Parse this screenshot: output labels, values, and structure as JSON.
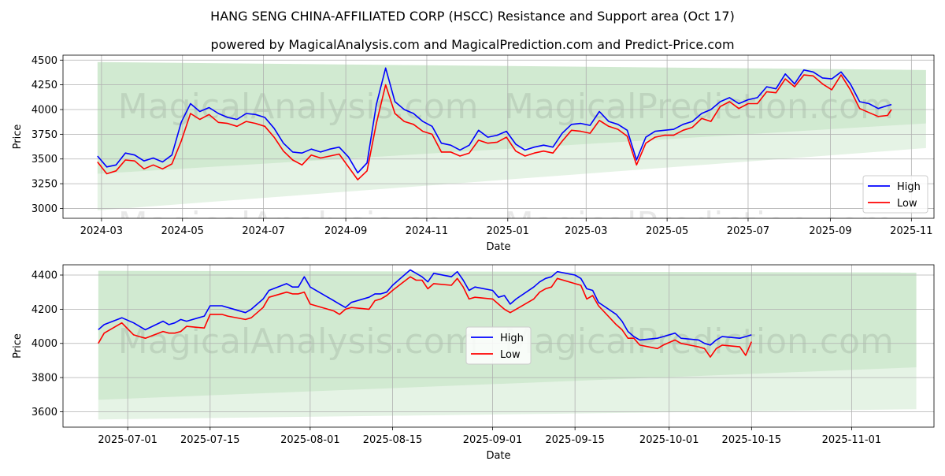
{
  "header": {
    "title": "HANG SENG CHINA-AFFILIATED CORP (HSCC) Resistance and Support area (Oct 17)",
    "subtitle": "powered by MagicalAnalysis.com and MagicalPrediction.com and Predict-Price.com"
  },
  "watermark": [
    "MagicalAnalysis.com",
    "MagicalPrediction.com"
  ],
  "colors": {
    "high": "#0000ff",
    "low": "#ff0000",
    "band": "#2ca02c"
  },
  "chart_data": [
    {
      "type": "line",
      "xlabel": "Date",
      "ylabel": "Price",
      "xlim": [
        "2024-02-01",
        "2025-11-18"
      ],
      "ylim": [
        2900,
        4550
      ],
      "yticks": [
        3000,
        3250,
        3500,
        3750,
        4000,
        4250,
        4500
      ],
      "xticks": [
        "2024-03",
        "2024-05",
        "2024-07",
        "2024-09",
        "2024-11",
        "2025-01",
        "2025-03",
        "2025-05",
        "2025-07",
        "2025-09",
        "2025-11"
      ],
      "grid": true,
      "legend": "lower right",
      "bands": [
        {
          "x": [
            "2024-02-27",
            "2025-11-12"
          ],
          "upper": [
            4480,
            4400
          ],
          "lower": [
            3350,
            3860
          ]
        },
        {
          "x": [
            "2024-02-27",
            "2025-11-12"
          ],
          "upper": [
            3350,
            3860
          ],
          "lower": [
            2980,
            3610
          ]
        }
      ],
      "series": [
        {
          "name": "High",
          "x": [
            "2024-02-27",
            "2024-03-05",
            "2024-03-12",
            "2024-03-19",
            "2024-03-26",
            "2024-04-02",
            "2024-04-09",
            "2024-04-16",
            "2024-04-23",
            "2024-04-30",
            "2024-05-07",
            "2024-05-14",
            "2024-05-21",
            "2024-05-28",
            "2024-06-04",
            "2024-06-11",
            "2024-06-18",
            "2024-06-25",
            "2024-07-02",
            "2024-07-09",
            "2024-07-16",
            "2024-07-23",
            "2024-07-30",
            "2024-08-06",
            "2024-08-13",
            "2024-08-20",
            "2024-08-27",
            "2024-09-03",
            "2024-09-10",
            "2024-09-17",
            "2024-09-24",
            "2024-10-01",
            "2024-10-08",
            "2024-10-15",
            "2024-10-22",
            "2024-10-29",
            "2024-11-05",
            "2024-11-12",
            "2024-11-19",
            "2024-11-26",
            "2024-12-03",
            "2024-12-10",
            "2024-12-17",
            "2024-12-24",
            "2024-12-31",
            "2025-01-07",
            "2025-01-14",
            "2025-01-21",
            "2025-01-28",
            "2025-02-04",
            "2025-02-11",
            "2025-02-18",
            "2025-02-25",
            "2025-03-04",
            "2025-03-11",
            "2025-03-18",
            "2025-03-25",
            "2025-04-01",
            "2025-04-08",
            "2025-04-15",
            "2025-04-22",
            "2025-04-29",
            "2025-05-06",
            "2025-05-13",
            "2025-05-20",
            "2025-05-27",
            "2025-06-03",
            "2025-06-10",
            "2025-06-17",
            "2025-06-24",
            "2025-07-01",
            "2025-07-08",
            "2025-07-15",
            "2025-07-22",
            "2025-07-29",
            "2025-08-05",
            "2025-08-12",
            "2025-08-19",
            "2025-08-26",
            "2025-09-02",
            "2025-09-09",
            "2025-09-16",
            "2025-09-23",
            "2025-09-30",
            "2025-10-07",
            "2025-10-14",
            "2025-10-17"
          ],
          "values": [
            3530,
            3420,
            3440,
            3560,
            3540,
            3480,
            3510,
            3470,
            3540,
            3870,
            4060,
            3980,
            4020,
            3960,
            3920,
            3900,
            3960,
            3950,
            3920,
            3810,
            3660,
            3570,
            3560,
            3600,
            3570,
            3600,
            3620,
            3520,
            3360,
            3460,
            4050,
            4420,
            4080,
            4000,
            3960,
            3880,
            3830,
            3660,
            3640,
            3590,
            3640,
            3790,
            3720,
            3740,
            3780,
            3650,
            3590,
            3620,
            3640,
            3620,
            3760,
            3850,
            3860,
            3840,
            3980,
            3880,
            3850,
            3790,
            3490,
            3720,
            3780,
            3790,
            3800,
            3850,
            3880,
            3960,
            4000,
            4080,
            4120,
            4060,
            4100,
            4120,
            4230,
            4210,
            4360,
            4260,
            4400,
            4380,
            4320,
            4310,
            4380,
            4260,
            4080,
            4060,
            4010,
            4040,
            4050
          ]
        },
        {
          "name": "Low",
          "x": [
            "2024-02-27",
            "2024-03-05",
            "2024-03-12",
            "2024-03-19",
            "2024-03-26",
            "2024-04-02",
            "2024-04-09",
            "2024-04-16",
            "2024-04-23",
            "2024-04-30",
            "2024-05-07",
            "2024-05-14",
            "2024-05-21",
            "2024-05-28",
            "2024-06-04",
            "2024-06-11",
            "2024-06-18",
            "2024-06-25",
            "2024-07-02",
            "2024-07-09",
            "2024-07-16",
            "2024-07-23",
            "2024-07-30",
            "2024-08-06",
            "2024-08-13",
            "2024-08-20",
            "2024-08-27",
            "2024-09-03",
            "2024-09-10",
            "2024-09-17",
            "2024-09-24",
            "2024-10-01",
            "2024-10-08",
            "2024-10-15",
            "2024-10-22",
            "2024-10-29",
            "2024-11-05",
            "2024-11-12",
            "2024-11-19",
            "2024-11-26",
            "2024-12-03",
            "2024-12-10",
            "2024-12-17",
            "2024-12-24",
            "2024-12-31",
            "2025-01-07",
            "2025-01-14",
            "2025-01-21",
            "2025-01-28",
            "2025-02-04",
            "2025-02-11",
            "2025-02-18",
            "2025-02-25",
            "2025-03-04",
            "2025-03-11",
            "2025-03-18",
            "2025-03-25",
            "2025-04-01",
            "2025-04-08",
            "2025-04-15",
            "2025-04-22",
            "2025-04-29",
            "2025-05-06",
            "2025-05-13",
            "2025-05-20",
            "2025-05-27",
            "2025-06-03",
            "2025-06-10",
            "2025-06-17",
            "2025-06-24",
            "2025-07-01",
            "2025-07-08",
            "2025-07-15",
            "2025-07-22",
            "2025-07-29",
            "2025-08-05",
            "2025-08-12",
            "2025-08-19",
            "2025-08-26",
            "2025-09-02",
            "2025-09-09",
            "2025-09-16",
            "2025-09-23",
            "2025-09-30",
            "2025-10-07",
            "2025-10-14",
            "2025-10-17"
          ],
          "values": [
            3470,
            3350,
            3380,
            3490,
            3480,
            3400,
            3440,
            3400,
            3450,
            3680,
            3960,
            3900,
            3950,
            3870,
            3860,
            3830,
            3880,
            3860,
            3830,
            3720,
            3580,
            3490,
            3440,
            3540,
            3510,
            3530,
            3550,
            3420,
            3290,
            3380,
            3860,
            4250,
            3960,
            3880,
            3850,
            3780,
            3750,
            3570,
            3570,
            3530,
            3560,
            3690,
            3660,
            3670,
            3720,
            3580,
            3530,
            3560,
            3580,
            3560,
            3680,
            3790,
            3780,
            3760,
            3890,
            3830,
            3800,
            3730,
            3440,
            3660,
            3720,
            3740,
            3740,
            3790,
            3820,
            3910,
            3880,
            4030,
            4080,
            4010,
            4060,
            4060,
            4180,
            4170,
            4310,
            4230,
            4350,
            4340,
            4260,
            4200,
            4350,
            4200,
            4010,
            3970,
            3930,
            3940,
            4000
          ]
        }
      ]
    },
    {
      "type": "line",
      "xlabel": "Date",
      "ylabel": "Price",
      "xlim": [
        "2025-06-20",
        "2025-11-15"
      ],
      "ylim": [
        3510,
        4460
      ],
      "yticks": [
        3600,
        3800,
        4000,
        4200,
        4400
      ],
      "xticks": [
        "2025-07-01",
        "2025-07-15",
        "2025-08-01",
        "2025-08-15",
        "2025-09-01",
        "2025-09-15",
        "2025-10-01",
        "2025-10-15",
        "2025-11-01"
      ],
      "grid": true,
      "legend": "center",
      "bands": [
        {
          "x": [
            "2025-06-26",
            "2025-11-12"
          ],
          "upper": [
            4425,
            4415
          ],
          "lower": [
            3670,
            3860
          ]
        },
        {
          "x": [
            "2025-06-26",
            "2025-11-12"
          ],
          "upper": [
            3670,
            3860
          ],
          "lower": [
            3555,
            3615
          ]
        }
      ],
      "series": [
        {
          "name": "High",
          "x": [
            "2025-06-26",
            "2025-06-27",
            "2025-06-30",
            "2025-07-02",
            "2025-07-03",
            "2025-07-04",
            "2025-07-07",
            "2025-07-08",
            "2025-07-09",
            "2025-07-10",
            "2025-07-11",
            "2025-07-14",
            "2025-07-15",
            "2025-07-16",
            "2025-07-17",
            "2025-07-18",
            "2025-07-21",
            "2025-07-22",
            "2025-07-23",
            "2025-07-24",
            "2025-07-25",
            "2025-07-28",
            "2025-07-29",
            "2025-07-30",
            "2025-07-31",
            "2025-08-01",
            "2025-08-04",
            "2025-08-05",
            "2025-08-06",
            "2025-08-07",
            "2025-08-08",
            "2025-08-11",
            "2025-08-12",
            "2025-08-13",
            "2025-08-14",
            "2025-08-15",
            "2025-08-18",
            "2025-08-19",
            "2025-08-20",
            "2025-08-21",
            "2025-08-22",
            "2025-08-25",
            "2025-08-26",
            "2025-08-27",
            "2025-08-28",
            "2025-08-29",
            "2025-09-01",
            "2025-09-02",
            "2025-09-03",
            "2025-09-04",
            "2025-09-05",
            "2025-09-08",
            "2025-09-09",
            "2025-09-10",
            "2025-09-11",
            "2025-09-12",
            "2025-09-15",
            "2025-09-16",
            "2025-09-17",
            "2025-09-18",
            "2025-09-19",
            "2025-09-22",
            "2025-09-23",
            "2025-09-24",
            "2025-09-25",
            "2025-09-26",
            "2025-09-29",
            "2025-09-30",
            "2025-10-02",
            "2025-10-03",
            "2025-10-06",
            "2025-10-07",
            "2025-10-08",
            "2025-10-09",
            "2025-10-10",
            "2025-10-13",
            "2025-10-14",
            "2025-10-15"
          ],
          "values": [
            4080,
            4110,
            4150,
            4120,
            4100,
            4080,
            4130,
            4110,
            4120,
            4140,
            4130,
            4160,
            4220,
            4220,
            4220,
            4210,
            4180,
            4200,
            4230,
            4260,
            4310,
            4350,
            4330,
            4330,
            4390,
            4330,
            4270,
            4250,
            4230,
            4210,
            4240,
            4270,
            4290,
            4290,
            4300,
            4340,
            4430,
            4410,
            4390,
            4360,
            4410,
            4390,
            4420,
            4370,
            4310,
            4330,
            4310,
            4270,
            4280,
            4230,
            4260,
            4330,
            4360,
            4380,
            4390,
            4420,
            4400,
            4380,
            4320,
            4310,
            4240,
            4170,
            4130,
            4070,
            4040,
            4020,
            4030,
            4040,
            4060,
            4030,
            4020,
            4000,
            3990,
            4020,
            4040,
            4030,
            4040,
            4050
          ]
        },
        {
          "name": "Low",
          "x": [
            "2025-06-26",
            "2025-06-27",
            "2025-06-30",
            "2025-07-02",
            "2025-07-03",
            "2025-07-04",
            "2025-07-07",
            "2025-07-08",
            "2025-07-09",
            "2025-07-10",
            "2025-07-11",
            "2025-07-14",
            "2025-07-15",
            "2025-07-16",
            "2025-07-17",
            "2025-07-18",
            "2025-07-21",
            "2025-07-22",
            "2025-07-23",
            "2025-07-24",
            "2025-07-25",
            "2025-07-28",
            "2025-07-29",
            "2025-07-30",
            "2025-07-31",
            "2025-08-01",
            "2025-08-04",
            "2025-08-05",
            "2025-08-06",
            "2025-08-07",
            "2025-08-08",
            "2025-08-11",
            "2025-08-12",
            "2025-08-13",
            "2025-08-14",
            "2025-08-15",
            "2025-08-18",
            "2025-08-19",
            "2025-08-20",
            "2025-08-21",
            "2025-08-22",
            "2025-08-25",
            "2025-08-26",
            "2025-08-27",
            "2025-08-28",
            "2025-08-29",
            "2025-09-01",
            "2025-09-02",
            "2025-09-03",
            "2025-09-04",
            "2025-09-05",
            "2025-09-08",
            "2025-09-09",
            "2025-09-10",
            "2025-09-11",
            "2025-09-12",
            "2025-09-15",
            "2025-09-16",
            "2025-09-17",
            "2025-09-18",
            "2025-09-19",
            "2025-09-22",
            "2025-09-23",
            "2025-09-24",
            "2025-09-25",
            "2025-09-26",
            "2025-09-29",
            "2025-09-30",
            "2025-10-02",
            "2025-10-03",
            "2025-10-06",
            "2025-10-07",
            "2025-10-08",
            "2025-10-09",
            "2025-10-10",
            "2025-10-13",
            "2025-10-14",
            "2025-10-15"
          ],
          "values": [
            4000,
            4060,
            4120,
            4050,
            4040,
            4030,
            4070,
            4060,
            4060,
            4070,
            4100,
            4090,
            4170,
            4170,
            4170,
            4160,
            4140,
            4150,
            4180,
            4210,
            4270,
            4300,
            4290,
            4290,
            4300,
            4230,
            4200,
            4190,
            4170,
            4200,
            4210,
            4200,
            4250,
            4260,
            4280,
            4310,
            4390,
            4370,
            4370,
            4320,
            4350,
            4340,
            4380,
            4330,
            4260,
            4270,
            4260,
            4230,
            4200,
            4180,
            4200,
            4260,
            4300,
            4320,
            4330,
            4380,
            4350,
            4340,
            4260,
            4280,
            4220,
            4110,
            4080,
            4030,
            4030,
            3990,
            3970,
            3990,
            4020,
            4000,
            3980,
            3970,
            3920,
            3970,
            3990,
            3980,
            3930,
            4010
          ]
        }
      ]
    }
  ]
}
